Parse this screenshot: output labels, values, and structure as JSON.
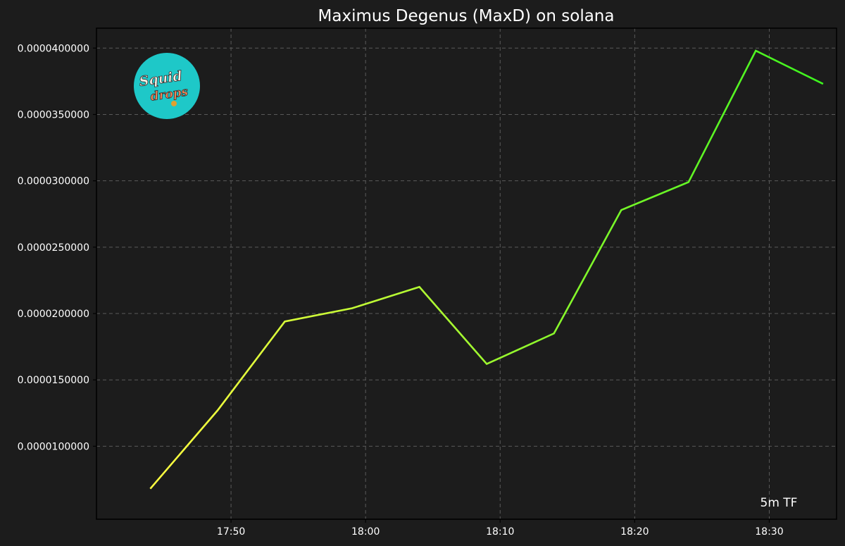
{
  "chart_data": {
    "type": "line",
    "title": "Maximus Degenus (MaxD) on solana",
    "xlabel": "",
    "ylabel": "",
    "annotation": "5m TF",
    "x_ticks": [
      "17:50",
      "18:00",
      "18:10",
      "18:20",
      "18:30"
    ],
    "y_ticks": [
      "0.0000100000",
      "0.0000150000",
      "0.0000200000",
      "0.0000250000",
      "0.0000300000",
      "0.0000350000",
      "0.0000400000"
    ],
    "y_tick_values": [
      1e-05,
      1.5e-05,
      2e-05,
      2.5e-05,
      3e-05,
      3.5e-05,
      4e-05
    ],
    "xlim": [
      "17:40",
      "18:35"
    ],
    "ylim": [
      4.5e-06,
      4.15e-05
    ],
    "grid": true,
    "series": [
      {
        "x": [
          "17:44",
          "17:49",
          "17:54",
          "17:59",
          "18:04",
          "18:09",
          "18:14",
          "18:19",
          "18:24",
          "18:29",
          "18:34"
        ],
        "values": [
          6.8e-06,
          1.27e-05,
          1.94e-05,
          2.04e-05,
          2.2e-05,
          1.62e-05,
          1.85e-05,
          2.78e-05,
          2.99e-05,
          3.98e-05,
          3.73e-05
        ]
      }
    ],
    "line_gradient": [
      "#ffff40",
      "#3cf41e"
    ],
    "colors": {
      "background": "#1c1c1c",
      "text": "#ffffff",
      "grid": "#5a5a5a"
    }
  },
  "logo": {
    "text_line1": "Squid",
    "text_line2": "drops",
    "bg_color": "#1ec8c8"
  }
}
